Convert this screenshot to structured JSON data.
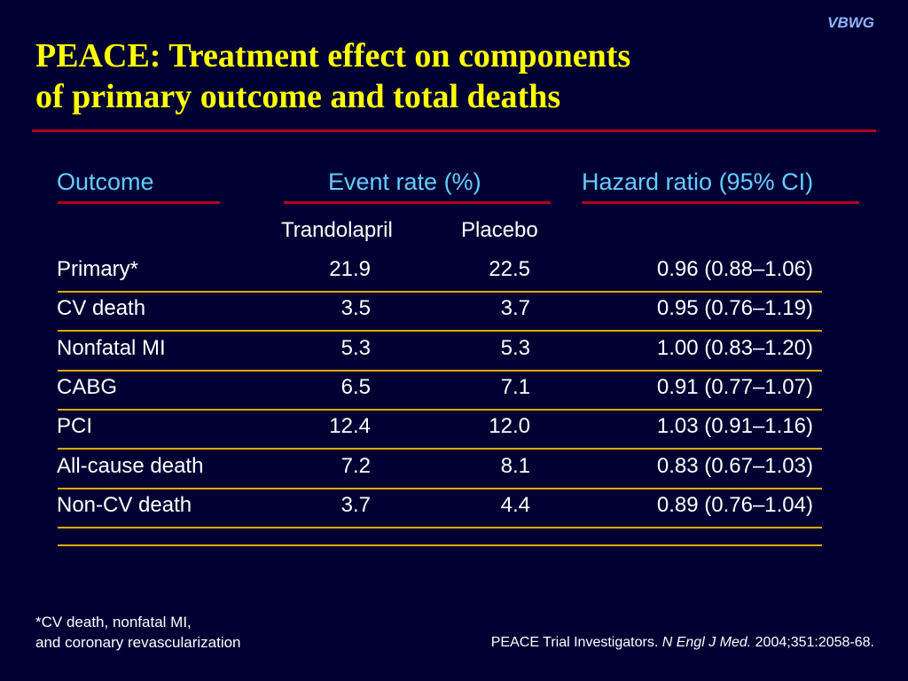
{
  "brand": "VBWG",
  "title_line1": "PEACE: Treatment effect on components",
  "title_line2": "of primary outcome and total deaths",
  "headers": {
    "outcome": "Outcome",
    "event_rate": "Event rate (%)",
    "hazard_ratio": "Hazard ratio (95% CI)"
  },
  "subheaders": {
    "trandolapril": "Trandolapril",
    "placebo": "Placebo"
  },
  "rows": [
    {
      "outcome": "Primary*",
      "trandolapril": "21.9",
      "placebo": "22.5",
      "hr": "0.96 (0.88–1.06)"
    },
    {
      "outcome": "CV death",
      "trandolapril": "3.5",
      "placebo": "3.7",
      "hr": "0.95 (0.76–1.19)"
    },
    {
      "outcome": "Nonfatal MI",
      "trandolapril": "5.3",
      "placebo": "5.3",
      "hr": "1.00 (0.83–1.20)"
    },
    {
      "outcome": "CABG",
      "trandolapril": "6.5",
      "placebo": "7.1",
      "hr": "0.91 (0.77–1.07)"
    },
    {
      "outcome": "PCI",
      "trandolapril": "12.4",
      "placebo": "12.0",
      "hr": "1.03 (0.91–1.16)"
    },
    {
      "outcome": "All-cause death",
      "trandolapril": "7.2",
      "placebo": "8.1",
      "hr": "0.83 (0.67–1.03)"
    },
    {
      "outcome": "Non-CV death",
      "trandolapril": "3.7",
      "placebo": "4.4",
      "hr": "0.89 (0.76–1.04)"
    }
  ],
  "footnote_line1": "*CV death, nonfatal MI,",
  "footnote_line2": "and coronary revascularization",
  "citation": {
    "authors": "PEACE Trial Investigators.",
    "journal": "N Engl J Med.",
    "ref": "2004;351:2058-68."
  }
}
